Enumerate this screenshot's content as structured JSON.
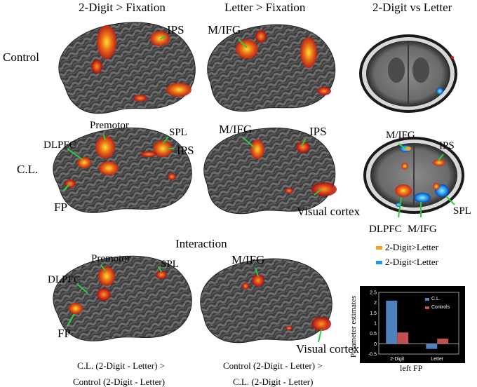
{
  "headers": {
    "col1": "2-Digit > Fixation",
    "col2": "Letter > Fixation",
    "col3": "2-Digit vs Letter",
    "interaction": "Interaction"
  },
  "rows": {
    "control": "Control",
    "cl": "C.L."
  },
  "annotations": {
    "ips_control": "IPS",
    "mifg_control": "M/IFG",
    "premotor_cl": "Premotor",
    "spl_cl": "SPL",
    "dlpfc_cl": "DLPFC",
    "ips_cl": "IPS",
    "fp_cl": "FP",
    "mifg_cl_letter": "M/IFG",
    "ips_cl_letter": "IPS",
    "visual_cl": "Visual cortex",
    "mifg_axial_top": "M/IFG",
    "ips_axial": "IPS",
    "spl_axial": "SPL",
    "dlpfc_axial": "DLPFC",
    "mifg_axial_bottom": "M/IFG",
    "premotor_int": "Premotor",
    "spl_int": "SPL",
    "dlpfc_int": "DLPFC",
    "fp_int": "FP",
    "mifg_int": "M/IFG",
    "visual_int": "Visual cortex"
  },
  "captions": {
    "left_line1": "C.L.   (2-Digit - Letter) >",
    "left_line2": "Control (2-Digit - Letter)",
    "right_line1": "Control (2-Digit - Letter) >",
    "right_line2": "C.L.   (2-Digit - Letter)"
  },
  "legend": [
    {
      "label": "2-Digit>Letter",
      "color": "#f5a020"
    },
    {
      "label": "2-Digit<Letter",
      "color": "#1e9be8"
    }
  ],
  "colors": {
    "brain_dark": "#3a3a3a",
    "brain_light": "#7a7a7a",
    "activation_hot": "#f7e23a",
    "activation_mid": "#f07818",
    "activation_low": "#c81e10",
    "arrow": "#2ecc40"
  },
  "chart_data": {
    "type": "bar",
    "ylabel": "Parameter estimates",
    "xlabel": "left FP",
    "categories": [
      "2-Digit",
      "Letter"
    ],
    "yticks": [
      "-0.5",
      "0",
      "0.5",
      "1",
      "1.5",
      "2",
      "2.5"
    ],
    "ylim": [
      -0.5,
      2.5
    ],
    "series": [
      {
        "name": "C.L.",
        "color": "#4f81bd",
        "values": [
          2.1,
          -0.25
        ]
      },
      {
        "name": "Controls",
        "color": "#c0504d",
        "values": [
          0.55,
          0.25
        ]
      }
    ],
    "legend_position": "top-right"
  }
}
